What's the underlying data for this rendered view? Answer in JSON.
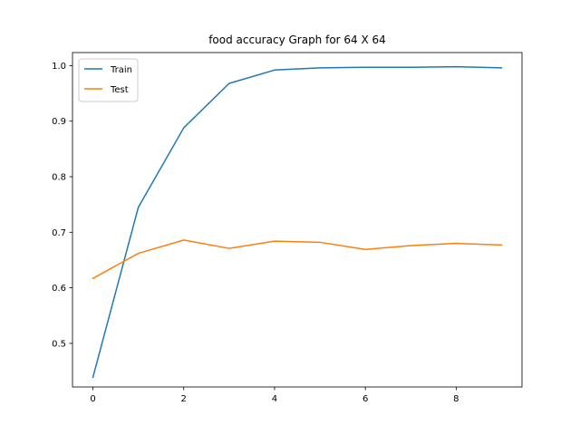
{
  "chart_data": {
    "type": "line",
    "title": "food accuracy Graph for 64 X 64",
    "xlabel": "",
    "ylabel": "",
    "x": [
      0,
      1,
      2,
      3,
      4,
      5,
      6,
      7,
      8,
      9
    ],
    "xlim": [
      -0.45,
      9.45
    ],
    "ylim": [
      0.4215,
      1.0235
    ],
    "xticks": [
      0,
      2,
      4,
      6,
      8
    ],
    "yticks": [
      0.5,
      0.6,
      0.7,
      0.8,
      0.9,
      1.0
    ],
    "ytick_labels": [
      "0.5",
      "0.6",
      "0.7",
      "0.8",
      "0.9",
      "1.0"
    ],
    "grid": false,
    "legend_position": "upper left",
    "series": [
      {
        "name": "Train",
        "color": "#1f77b4",
        "values": [
          0.439,
          0.745,
          0.888,
          0.968,
          0.992,
          0.996,
          0.997,
          0.997,
          0.998,
          0.996
        ]
      },
      {
        "name": "Test",
        "color": "#ff7f0e",
        "values": [
          0.617,
          0.662,
          0.686,
          0.671,
          0.684,
          0.682,
          0.669,
          0.676,
          0.68,
          0.677
        ]
      }
    ]
  }
}
